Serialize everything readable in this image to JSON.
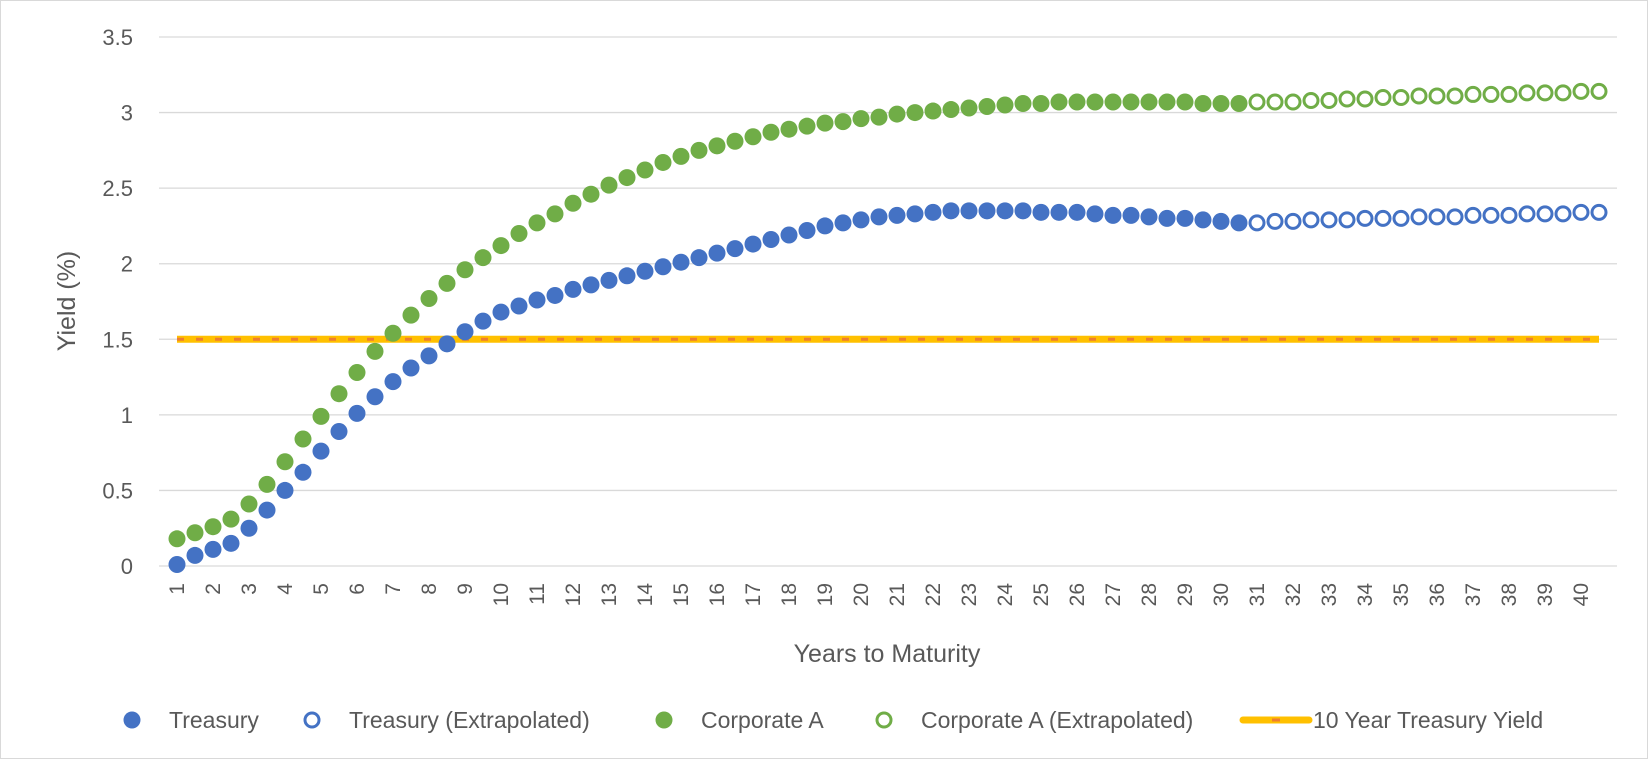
{
  "chart_data": {
    "type": "scatter",
    "title": "",
    "xlabel": "Years to Maturity",
    "ylabel": "Yield (%)",
    "ylim": [
      0,
      3.5
    ],
    "yticks": [
      "0",
      "0.5",
      "1",
      "1.5",
      "2",
      "2.5",
      "3",
      "3.5"
    ],
    "xticks": [
      "1",
      "2",
      "3",
      "4",
      "5",
      "6",
      "7",
      "8",
      "9",
      "10",
      "11",
      "12",
      "13",
      "14",
      "15",
      "16",
      "17",
      "18",
      "19",
      "20",
      "21",
      "22",
      "23",
      "24",
      "25",
      "26",
      "27",
      "28",
      "29",
      "30",
      "31",
      "32",
      "33",
      "34",
      "35",
      "36",
      "37",
      "38",
      "39",
      "40"
    ],
    "grid": "horizontal",
    "legend": "bottom",
    "colors": {
      "treasury": "#4472c4",
      "corporate": "#70ad47",
      "ten_year_line": "#ffc000",
      "ten_year_dash": "#ed7d31",
      "grid": "#d9d9d9",
      "text": "#595959"
    },
    "series": [
      {
        "name": "Treasury",
        "marker": "filled-circle",
        "color": "#4472c4",
        "x": [
          1,
          1.5,
          2,
          2.5,
          3,
          3.5,
          4,
          4.5,
          5,
          5.5,
          6,
          6.5,
          7,
          7.5,
          8,
          8.5,
          9,
          9.5,
          10,
          10.5,
          11,
          11.5,
          12,
          12.5,
          13,
          13.5,
          14,
          14.5,
          15,
          15.5,
          16,
          16.5,
          17,
          17.5,
          18,
          18.5,
          19,
          19.5,
          20,
          20.5,
          21,
          21.5,
          22,
          22.5,
          23,
          23.5,
          24,
          24.5,
          25,
          25.5,
          26,
          26.5,
          27,
          27.5,
          28,
          28.5,
          29,
          29.5,
          30,
          30.5
        ],
        "values": [
          0.01,
          0.07,
          0.11,
          0.15,
          0.25,
          0.37,
          0.5,
          0.62,
          0.76,
          0.89,
          1.01,
          1.12,
          1.22,
          1.31,
          1.39,
          1.47,
          1.55,
          1.62,
          1.68,
          1.72,
          1.76,
          1.79,
          1.83,
          1.86,
          1.89,
          1.92,
          1.95,
          1.98,
          2.01,
          2.04,
          2.07,
          2.1,
          2.13,
          2.16,
          2.19,
          2.22,
          2.25,
          2.27,
          2.29,
          2.31,
          2.32,
          2.33,
          2.34,
          2.35,
          2.35,
          2.35,
          2.35,
          2.35,
          2.34,
          2.34,
          2.34,
          2.33,
          2.32,
          2.32,
          2.31,
          2.3,
          2.3,
          2.29,
          2.28,
          2.27
        ]
      },
      {
        "name": "Treasury (Extrapolated)",
        "marker": "hollow-circle",
        "color": "#4472c4",
        "x": [
          31,
          31.5,
          32,
          32.5,
          33,
          33.5,
          34,
          34.5,
          35,
          35.5,
          36,
          36.5,
          37,
          37.5,
          38,
          38.5,
          39,
          39.5,
          40,
          40.5
        ],
        "values": [
          2.27,
          2.28,
          2.28,
          2.29,
          2.29,
          2.29,
          2.3,
          2.3,
          2.3,
          2.31,
          2.31,
          2.31,
          2.32,
          2.32,
          2.32,
          2.33,
          2.33,
          2.33,
          2.34,
          2.34
        ]
      },
      {
        "name": "Corporate A",
        "marker": "filled-circle",
        "color": "#70ad47",
        "x": [
          1,
          1.5,
          2,
          2.5,
          3,
          3.5,
          4,
          4.5,
          5,
          5.5,
          6,
          6.5,
          7,
          7.5,
          8,
          8.5,
          9,
          9.5,
          10,
          10.5,
          11,
          11.5,
          12,
          12.5,
          13,
          13.5,
          14,
          14.5,
          15,
          15.5,
          16,
          16.5,
          17,
          17.5,
          18,
          18.5,
          19,
          19.5,
          20,
          20.5,
          21,
          21.5,
          22,
          22.5,
          23,
          23.5,
          24,
          24.5,
          25,
          25.5,
          26,
          26.5,
          27,
          27.5,
          28,
          28.5,
          29,
          29.5,
          30,
          30.5
        ],
        "values": [
          0.18,
          0.22,
          0.26,
          0.31,
          0.41,
          0.54,
          0.69,
          0.84,
          0.99,
          1.14,
          1.28,
          1.42,
          1.54,
          1.66,
          1.77,
          1.87,
          1.96,
          2.04,
          2.12,
          2.2,
          2.27,
          2.33,
          2.4,
          2.46,
          2.52,
          2.57,
          2.62,
          2.67,
          2.71,
          2.75,
          2.78,
          2.81,
          2.84,
          2.87,
          2.89,
          2.91,
          2.93,
          2.94,
          2.96,
          2.97,
          2.99,
          3.0,
          3.01,
          3.02,
          3.03,
          3.04,
          3.05,
          3.06,
          3.06,
          3.07,
          3.07,
          3.07,
          3.07,
          3.07,
          3.07,
          3.07,
          3.07,
          3.06,
          3.06,
          3.06
        ]
      },
      {
        "name": "Corporate A (Extrapolated)",
        "marker": "hollow-circle",
        "color": "#70ad47",
        "x": [
          31,
          31.5,
          32,
          32.5,
          33,
          33.5,
          34,
          34.5,
          35,
          35.5,
          36,
          36.5,
          37,
          37.5,
          38,
          38.5,
          39,
          39.5,
          40,
          40.5
        ],
        "values": [
          3.07,
          3.07,
          3.07,
          3.08,
          3.08,
          3.09,
          3.09,
          3.1,
          3.1,
          3.11,
          3.11,
          3.11,
          3.12,
          3.12,
          3.12,
          3.13,
          3.13,
          3.13,
          3.14,
          3.14
        ]
      },
      {
        "name": "10 Year Treasury Yield",
        "marker": "line",
        "color": "#ffc000",
        "x": [
          1,
          40.5
        ],
        "values": [
          1.5,
          1.5
        ]
      }
    ]
  }
}
